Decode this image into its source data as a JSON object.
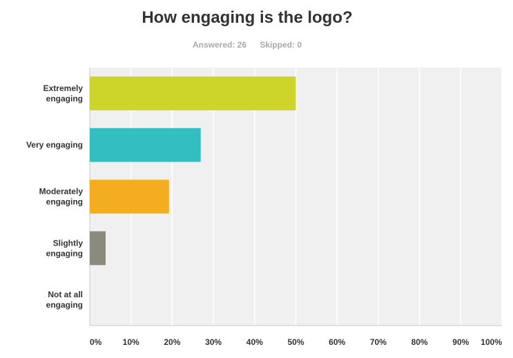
{
  "chart_data": {
    "type": "bar",
    "orientation": "horizontal",
    "title": "How engaging is the logo?",
    "subtitle": {
      "answered": "Answered: 26",
      "skipped": "Skipped: 0"
    },
    "categories": [
      [
        "Extremely",
        "engaging"
      ],
      [
        "Very engaging"
      ],
      [
        "Moderately",
        "engaging"
      ],
      [
        "Slightly",
        "engaging"
      ],
      [
        "Not at all",
        "engaging"
      ]
    ],
    "values": [
      50,
      26.92,
      19.23,
      3.85,
      0
    ],
    "colors": [
      "#cdd42a",
      "#33bfc1",
      "#f5ad20",
      "#8b8b7d",
      "#cccccc"
    ],
    "xlim": [
      0,
      100
    ],
    "xticks": [
      "0%",
      "10%",
      "20%",
      "30%",
      "40%",
      "50%",
      "60%",
      "70%",
      "80%",
      "90%",
      "100%"
    ],
    "grid": true,
    "plot_background": "#f0f0f0"
  }
}
